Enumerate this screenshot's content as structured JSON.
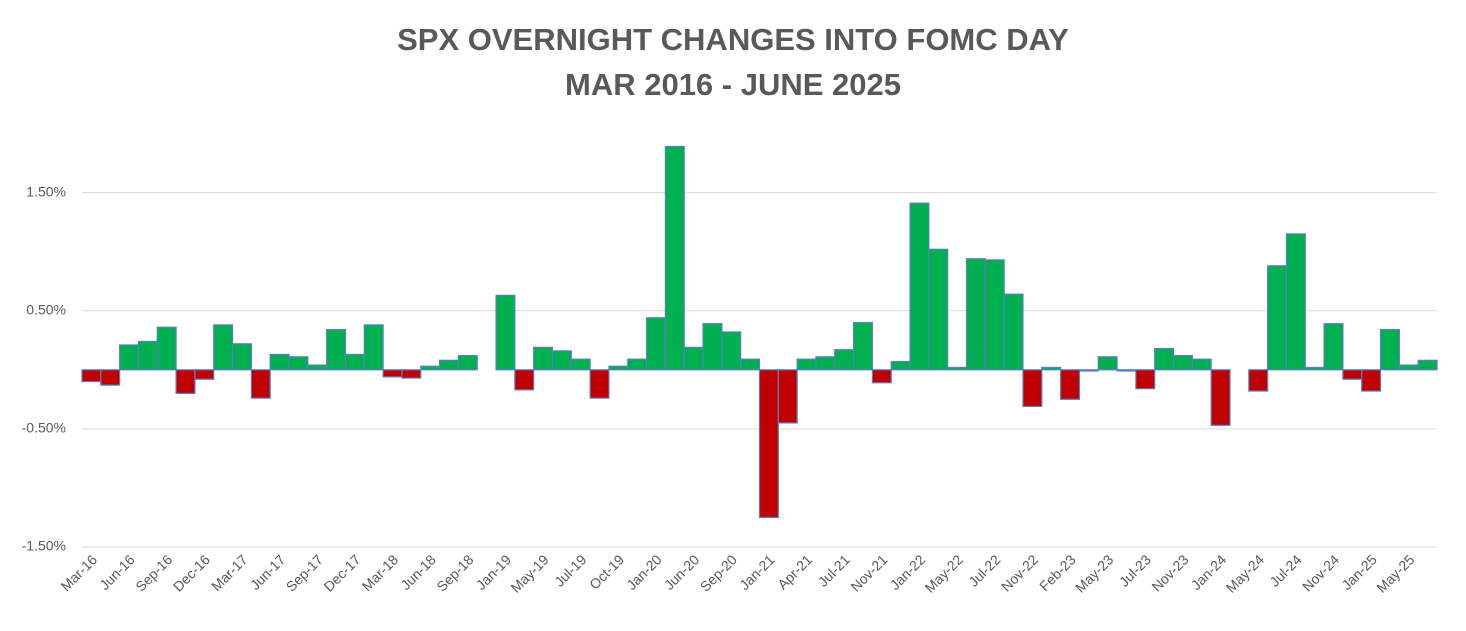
{
  "chart_data": {
    "type": "bar",
    "title": "SPX OVERNIGHT CHANGES INTO FOMC DAY",
    "subtitle": "MAR 2016 - JUNE 2025",
    "categories": [
      "Mar-16",
      null,
      "Jun-16",
      null,
      "Sep-16",
      null,
      "Dec-16",
      null,
      "Mar-17",
      null,
      "Jun-17",
      null,
      "Sep-17",
      null,
      "Dec-17",
      null,
      "Mar-18",
      null,
      "Jun-18",
      null,
      "Sep-18",
      null,
      "Jan-19",
      null,
      "May-19",
      null,
      "Jul-19",
      null,
      "Oct-19",
      null,
      "Jan-20",
      null,
      "Jun-20",
      null,
      "Sep-20",
      null,
      "Jan-21",
      null,
      "Apr-21",
      null,
      "Jul-21",
      null,
      "Nov-21",
      null,
      "Jan-22",
      null,
      "May-22",
      null,
      "Jul-22",
      null,
      "Nov-22",
      null,
      "Feb-23",
      null,
      "May-23",
      null,
      "Jul-23",
      null,
      "Nov-23",
      null,
      "Jan-24",
      null,
      "May-24",
      null,
      "Jul-24",
      null,
      "Nov-24",
      null,
      "Jan-25",
      null,
      "May-25",
      null
    ],
    "values": [
      -0.1,
      -0.13,
      0.21,
      0.24,
      0.36,
      -0.2,
      -0.08,
      0.38,
      0.22,
      -0.24,
      0.13,
      0.11,
      0.04,
      0.34,
      0.13,
      0.38,
      -0.06,
      -0.07,
      0.03,
      0.08,
      0.12,
      0.0,
      0.63,
      -0.17,
      0.19,
      0.16,
      0.09,
      -0.24,
      0.03,
      0.09,
      0.44,
      1.89,
      0.19,
      0.39,
      0.32,
      0.09,
      -1.25,
      -0.45,
      0.09,
      0.11,
      0.17,
      0.4,
      -0.11,
      0.07,
      1.41,
      1.02,
      0.02,
      0.94,
      0.93,
      0.64,
      -0.31,
      0.02,
      -0.25,
      -0.01,
      0.11,
      -0.01,
      -0.16,
      0.18,
      0.12,
      0.09,
      -0.47,
      0.0,
      -0.18,
      0.88,
      1.15,
      0.02,
      0.39,
      -0.08,
      -0.18,
      0.34,
      0.04,
      0.08
    ],
    "positive_color": "#00b050",
    "negative_color": "#c00000",
    "edge_color": "#5b7fbf",
    "ylim": [
      -1.5,
      2.0
    ],
    "yticks": [
      {
        "value": -1.5,
        "label": "-1.50%"
      },
      {
        "value": -0.5,
        "label": "-0.50%"
      },
      {
        "value": 0.5,
        "label": "0.50%"
      },
      {
        "value": 1.5,
        "label": "1.50%"
      }
    ],
    "grid": true
  }
}
